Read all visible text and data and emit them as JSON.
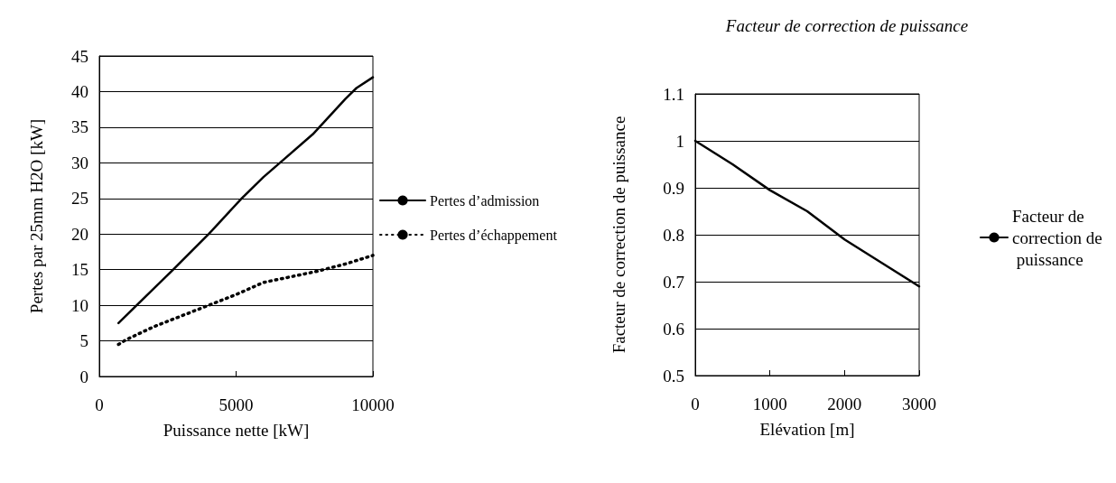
{
  "chart_data": [
    {
      "type": "line",
      "xlabel": "Puissance nette [kW]",
      "ylabel": "Pertes par 25mm H2O [kW]",
      "xlim": [
        0,
        10000
      ],
      "xticks": [
        0,
        5000,
        10000
      ],
      "ylim": [
        0,
        45
      ],
      "yticks": [
        0,
        5,
        10,
        15,
        20,
        25,
        30,
        35,
        40,
        45
      ],
      "grid": "y",
      "legend": "right",
      "marker": "none",
      "series": [
        {
          "name": "Pertes d’admission",
          "color": "#000000",
          "line_style": "solid",
          "x": [
            700,
            1500,
            2700,
            4000,
            5200,
            6000,
            6600,
            7800,
            9000,
            9400,
            10000
          ],
          "values": [
            7.5,
            10.5,
            15,
            20,
            25,
            28,
            30,
            34,
            39,
            40.5,
            42
          ]
        },
        {
          "name": "Pertes d’échappement",
          "color": "#000000",
          "line_style": "dotted",
          "x": [
            700,
            1000,
            2000,
            3000,
            4000,
            5000,
            6000,
            7000,
            8000,
            9000,
            10000
          ],
          "values": [
            4.5,
            5.2,
            7,
            8.5,
            10,
            11.5,
            13.2,
            14,
            14.8,
            15.8,
            17
          ]
        }
      ]
    },
    {
      "type": "line",
      "title": "Facteur de correction de puissance",
      "xlabel": "Elévation [m]",
      "ylabel": "Facteur de correction de puissance",
      "xlim": [
        0,
        3000
      ],
      "xticks": [
        0,
        1000,
        2000,
        3000
      ],
      "ylim": [
        0.5,
        1.1
      ],
      "yticks": [
        0.5,
        0.6,
        0.7,
        0.8,
        0.9,
        1,
        1.1
      ],
      "grid": "y",
      "legend": "right",
      "marker": "none",
      "series": [
        {
          "name": "Facteur de correction de puissance",
          "color": "#000000",
          "line_style": "solid",
          "x": [
            0,
            500,
            1000,
            1500,
            2000,
            2500,
            3000
          ],
          "values": [
            1,
            0.95,
            0.895,
            0.85,
            0.79,
            0.74,
            0.69
          ]
        }
      ]
    }
  ]
}
